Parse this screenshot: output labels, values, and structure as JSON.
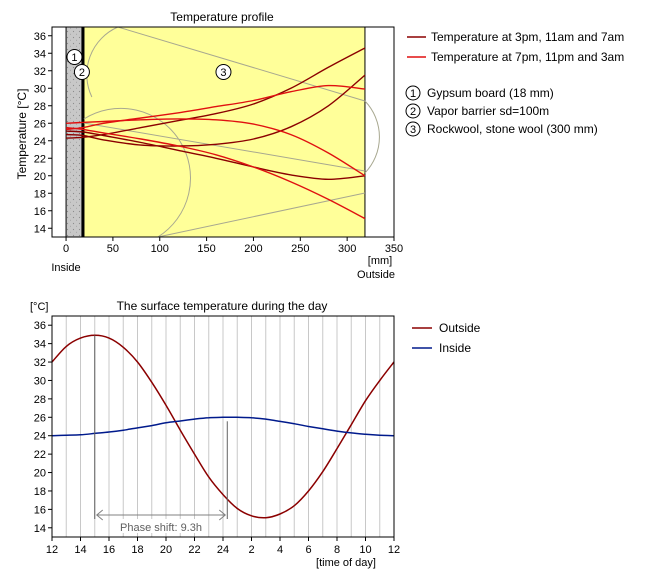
{
  "colors": {
    "dark_red": "#8b0000",
    "red": "#e01010",
    "navy": "#001a8c",
    "insulation": "#ffff99",
    "gypsum": "#c8c8c8",
    "barrier": "#000000",
    "gridline": "#c8c8c8",
    "pattern_line": "#a8a890"
  },
  "chart_data": [
    {
      "type": "line",
      "title": "Temperature profile",
      "xlabel": "[mm]",
      "ylabel": "Temperature [°C]",
      "xlim": [
        -15,
        350
      ],
      "ylim": [
        13,
        37
      ],
      "x_ticks": [
        0,
        50,
        100,
        150,
        200,
        250,
        300,
        350
      ],
      "y_ticks": [
        14,
        16,
        18,
        20,
        22,
        24,
        26,
        28,
        30,
        32,
        34,
        36
      ],
      "left_label": "Inside",
      "right_label": "Outside",
      "layers": [
        {
          "id": "1",
          "name": "Gypsum board (18 mm)",
          "from": 0,
          "to": 18
        },
        {
          "id": "2",
          "name": "Vapor barrier sd=100m",
          "from": 18,
          "to": 19
        },
        {
          "id": "3",
          "name": "Rockwool, stone wool (300 mm)",
          "from": 19,
          "to": 319
        }
      ],
      "legend": [
        {
          "label": "Temperature at 3pm, 11am and 7am",
          "color": "#8b0000"
        },
        {
          "label": "Temperature at 7pm, 11pm and 3am",
          "color": "#e01010"
        }
      ],
      "series": [
        {
          "color": "#8b0000",
          "x": [
            0,
            18,
            40,
            80,
            120,
            160,
            200,
            240,
            280,
            319
          ],
          "y": [
            24.3,
            24.4,
            24.7,
            25.5,
            26.3,
            27.1,
            28.2,
            30.0,
            32.4,
            34.6
          ]
        },
        {
          "color": "#8b0000",
          "x": [
            0,
            18,
            40,
            80,
            120,
            160,
            200,
            240,
            280,
            319
          ],
          "y": [
            24.7,
            24.6,
            24.1,
            23.5,
            23.4,
            23.6,
            24.2,
            25.6,
            28.0,
            31.5
          ]
        },
        {
          "color": "#8b0000",
          "x": [
            0,
            18,
            40,
            80,
            120,
            160,
            200,
            240,
            280,
            319
          ],
          "y": [
            25.1,
            25.0,
            24.6,
            23.8,
            22.9,
            22.0,
            21.0,
            20.1,
            19.6,
            20.0
          ]
        },
        {
          "color": "#e01010",
          "x": [
            0,
            18,
            40,
            80,
            120,
            160,
            200,
            240,
            280,
            319
          ],
          "y": [
            25.3,
            25.5,
            26.0,
            26.6,
            27.2,
            27.9,
            28.6,
            29.6,
            30.3,
            29.9
          ]
        },
        {
          "color": "#e01010",
          "x": [
            0,
            18,
            40,
            80,
            120,
            160,
            200,
            240,
            280,
            319
          ],
          "y": [
            26.0,
            26.1,
            26.2,
            26.4,
            26.5,
            26.4,
            25.9,
            24.7,
            22.6,
            20.0
          ]
        },
        {
          "color": "#e01010",
          "x": [
            0,
            18,
            40,
            80,
            120,
            160,
            200,
            240,
            280,
            319
          ],
          "y": [
            25.5,
            25.3,
            24.9,
            24.2,
            23.4,
            22.4,
            21.0,
            19.3,
            17.3,
            15.1
          ]
        }
      ]
    },
    {
      "type": "line",
      "title": "The surface temperature during the day",
      "xlabel": "[time of day]",
      "ylabel": "[°C]",
      "ylim": [
        13,
        37
      ],
      "x_tick_labels": [
        "12",
        "14",
        "16",
        "18",
        "20",
        "22",
        "24",
        "2",
        "4",
        "6",
        "8",
        "10",
        "12"
      ],
      "y_ticks": [
        14,
        16,
        18,
        20,
        22,
        24,
        26,
        28,
        30,
        32,
        34,
        36
      ],
      "annotation": "Phase shift: 9.3h",
      "legend": [
        {
          "label": "Outside",
          "color": "#8b0000"
        },
        {
          "label": "Inside",
          "color": "#001a8c"
        }
      ],
      "series": [
        {
          "name": "Outside",
          "color": "#8b0000",
          "x": [
            12,
            13,
            14,
            15,
            16,
            17,
            18,
            19,
            20,
            21,
            22,
            23,
            24,
            25,
            26,
            27,
            28,
            29,
            30,
            31,
            32,
            33,
            34,
            35,
            36
          ],
          "y": [
            32.0,
            33.7,
            34.6,
            34.9,
            34.6,
            33.6,
            32.0,
            29.8,
            27.3,
            24.6,
            22.0,
            19.5,
            17.6,
            16.1,
            15.3,
            15.1,
            15.5,
            16.4,
            18.0,
            20.1,
            22.6,
            25.2,
            27.8,
            30.0,
            32.0
          ]
        },
        {
          "name": "Inside",
          "color": "#001a8c",
          "x": [
            12,
            13,
            14,
            15,
            16,
            17,
            18,
            19,
            20,
            21,
            22,
            23,
            24,
            25,
            26,
            27,
            28,
            29,
            30,
            31,
            32,
            33,
            34,
            35,
            36
          ],
          "y": [
            24.0,
            24.05,
            24.1,
            24.25,
            24.4,
            24.6,
            24.85,
            25.1,
            25.4,
            25.6,
            25.8,
            25.95,
            26.0,
            26.0,
            25.95,
            25.8,
            25.55,
            25.3,
            25.0,
            24.75,
            24.5,
            24.3,
            24.15,
            24.05,
            24.0
          ]
        }
      ]
    }
  ]
}
